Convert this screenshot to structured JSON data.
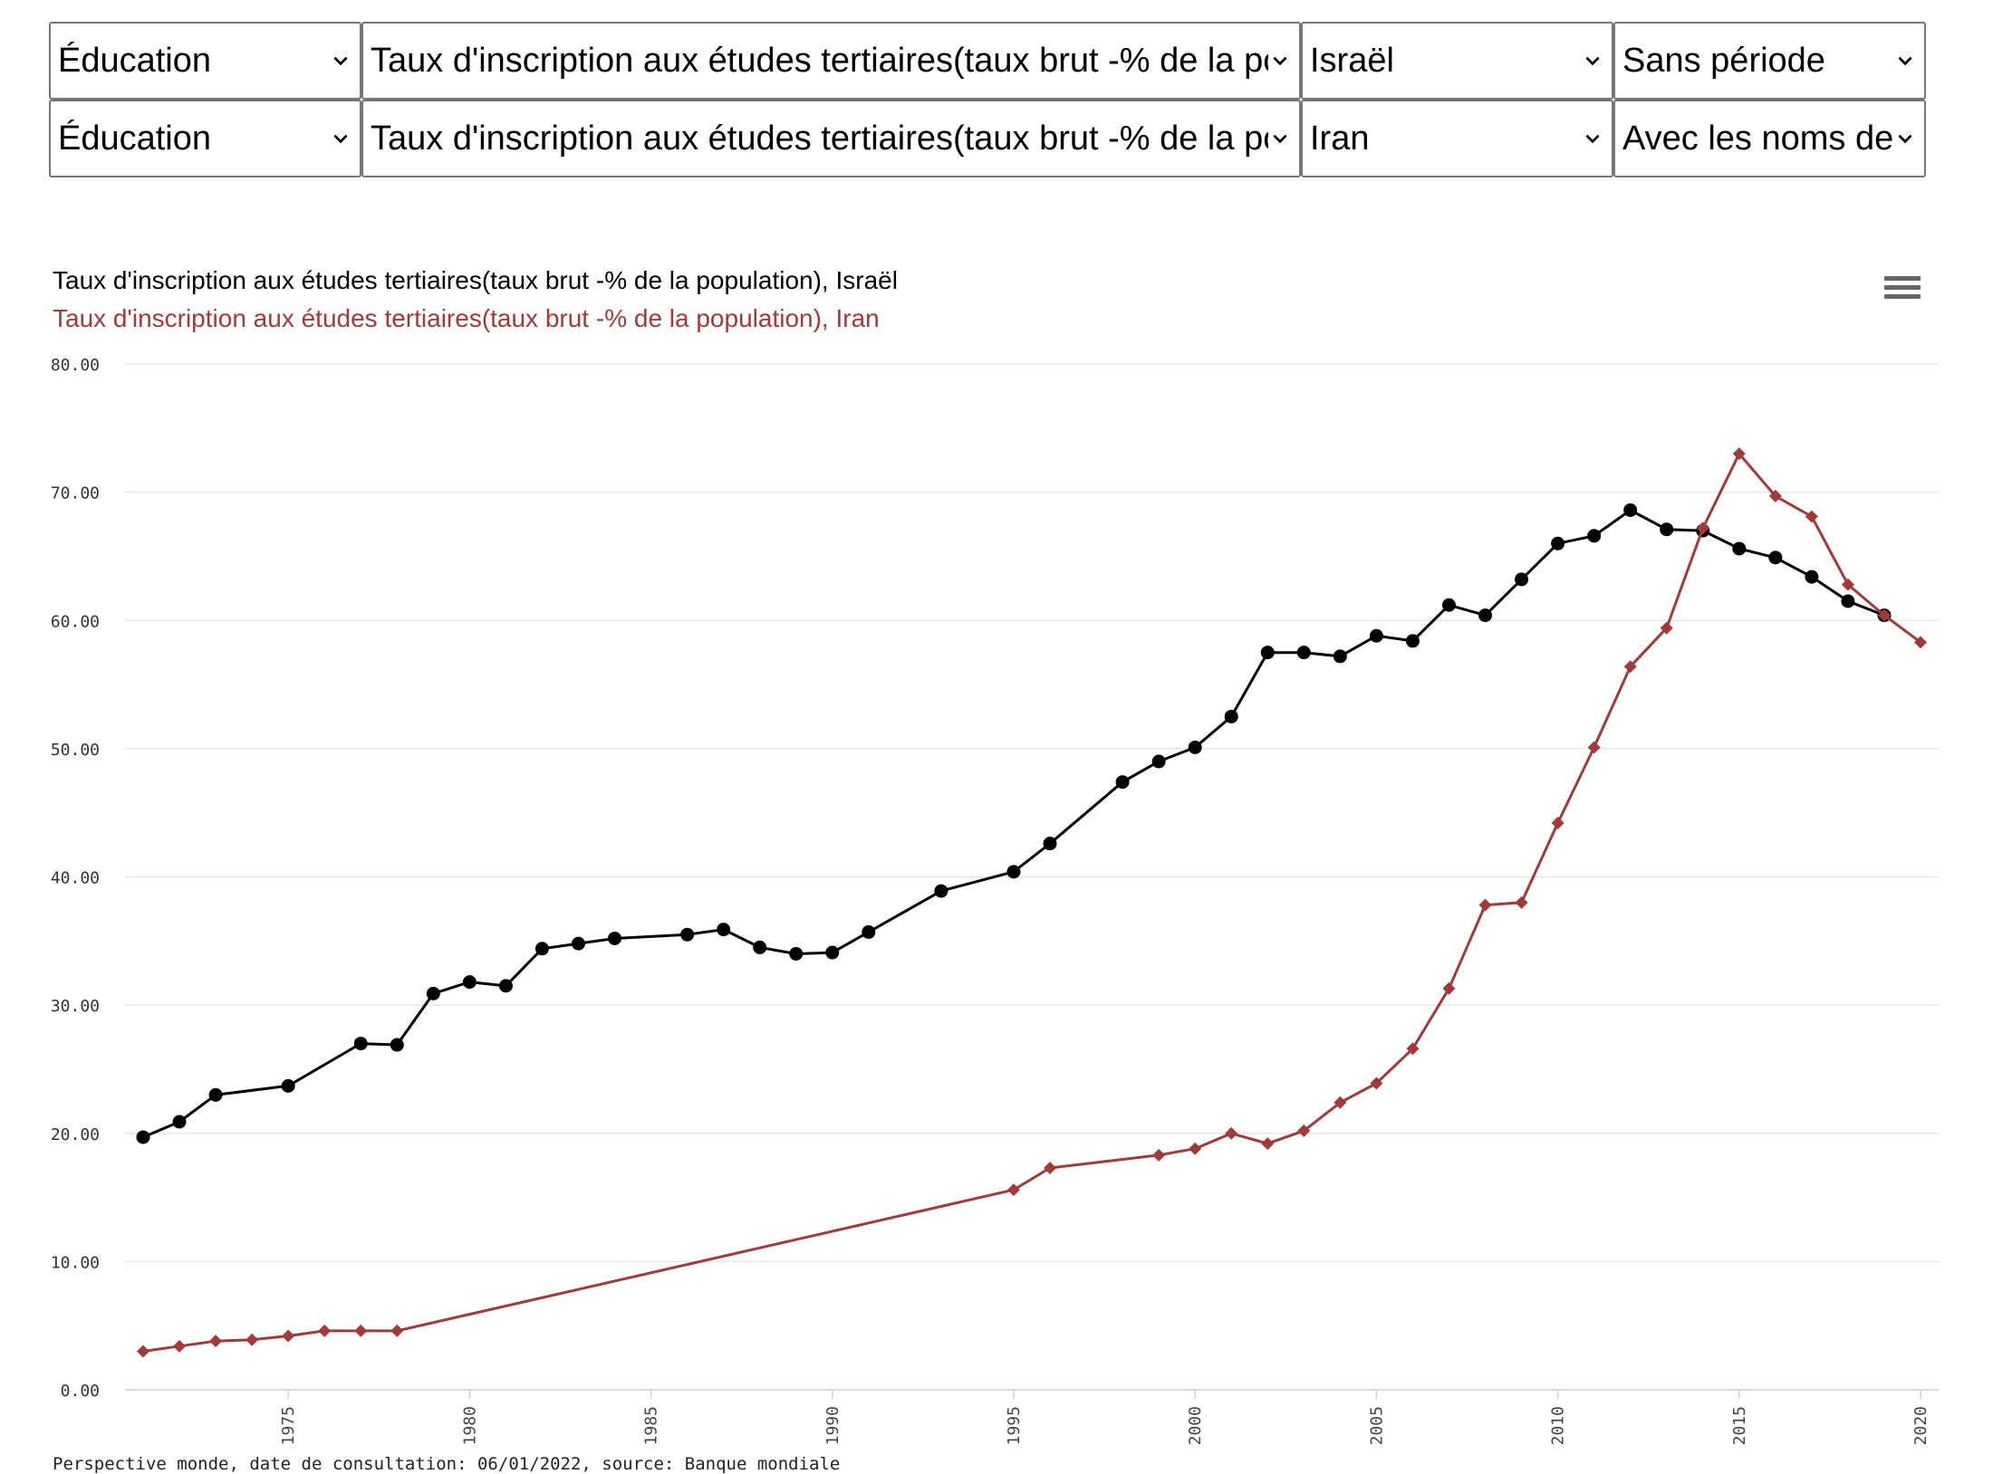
{
  "selectors": [
    [
      {
        "value": "Éducation"
      },
      {
        "value": "Taux d'inscription aux études tertiaires(taux brut -% de la population)"
      },
      {
        "value": "Israël"
      },
      {
        "value": "Sans période"
      }
    ],
    [
      {
        "value": "Éducation"
      },
      {
        "value": "Taux d'inscription aux études tertiaires(taux brut -% de la population)"
      },
      {
        "value": "Iran"
      },
      {
        "value": "Avec les noms de"
      }
    ]
  ],
  "icons": {
    "dropdown": "chevron-down-icon",
    "menu": "hamburger-menu-icon"
  },
  "chart_data": {
    "type": "line",
    "title_lines": [
      "Taux d'inscription aux études tertiaires(taux brut -% de la population), Israël",
      "Taux d'inscription aux études tertiaires(taux brut -% de la population), Iran"
    ],
    "ylim": [
      0,
      80
    ],
    "yticks": [
      "0.00",
      "10.00",
      "20.00",
      "30.00",
      "40.00",
      "50.00",
      "60.00",
      "70.00",
      "80.00"
    ],
    "xlim": [
      1971,
      2020
    ],
    "xticks": [
      "1975",
      "1980",
      "1985",
      "1990",
      "1995",
      "2000",
      "2005",
      "2010",
      "2015",
      "2020"
    ],
    "grid": true,
    "series": [
      {
        "name": "Israël",
        "color": "#000000",
        "marker": "circle",
        "points": [
          [
            1971,
            19.7
          ],
          [
            1972,
            20.9
          ],
          [
            1973,
            23.0
          ],
          [
            1975,
            23.7
          ],
          [
            1977,
            27.0
          ],
          [
            1978,
            26.9
          ],
          [
            1979,
            30.9
          ],
          [
            1980,
            31.8
          ],
          [
            1981,
            31.5
          ],
          [
            1982,
            34.4
          ],
          [
            1983,
            34.8
          ],
          [
            1984,
            35.2
          ],
          [
            1986,
            35.5
          ],
          [
            1987,
            35.9
          ],
          [
            1988,
            34.5
          ],
          [
            1989,
            34.0
          ],
          [
            1990,
            34.1
          ],
          [
            1991,
            35.7
          ],
          [
            1993,
            38.9
          ],
          [
            1995,
            40.4
          ],
          [
            1996,
            42.6
          ],
          [
            1998,
            47.4
          ],
          [
            1999,
            49.0
          ],
          [
            2000,
            50.1
          ],
          [
            2001,
            52.5
          ],
          [
            2002,
            57.5
          ],
          [
            2003,
            57.5
          ],
          [
            2004,
            57.2
          ],
          [
            2005,
            58.8
          ],
          [
            2006,
            58.4
          ],
          [
            2007,
            61.2
          ],
          [
            2008,
            60.4
          ],
          [
            2009,
            63.2
          ],
          [
            2010,
            66.0
          ],
          [
            2011,
            66.6
          ],
          [
            2012,
            68.6
          ],
          [
            2013,
            67.1
          ],
          [
            2014,
            67.0
          ],
          [
            2015,
            65.6
          ],
          [
            2016,
            64.9
          ],
          [
            2017,
            63.4
          ],
          [
            2018,
            61.5
          ],
          [
            2019,
            60.4
          ]
        ]
      },
      {
        "name": "Iran",
        "color": "#a23a3a",
        "marker": "diamond",
        "points": [
          [
            1971,
            3.0
          ],
          [
            1972,
            3.4
          ],
          [
            1973,
            3.8
          ],
          [
            1974,
            3.9
          ],
          [
            1975,
            4.2
          ],
          [
            1976,
            4.6
          ],
          [
            1977,
            4.6
          ],
          [
            1978,
            4.6
          ],
          [
            1995,
            15.6
          ],
          [
            1996,
            17.3
          ],
          [
            1999,
            18.3
          ],
          [
            2000,
            18.8
          ],
          [
            2001,
            20.0
          ],
          [
            2002,
            19.2
          ],
          [
            2003,
            20.2
          ],
          [
            2004,
            22.4
          ],
          [
            2005,
            23.9
          ],
          [
            2006,
            26.6
          ],
          [
            2007,
            31.3
          ],
          [
            2008,
            37.8
          ],
          [
            2009,
            38.0
          ],
          [
            2010,
            44.2
          ],
          [
            2011,
            50.1
          ],
          [
            2012,
            56.4
          ],
          [
            2013,
            59.4
          ],
          [
            2014,
            67.2
          ],
          [
            2015,
            73.0
          ],
          [
            2016,
            69.7
          ],
          [
            2017,
            68.1
          ],
          [
            2018,
            62.8
          ],
          [
            2019,
            60.4
          ],
          [
            2020,
            58.3
          ]
        ]
      }
    ]
  },
  "footer": "Perspective monde, date de consultation: 06/01/2022, source: Banque mondiale"
}
